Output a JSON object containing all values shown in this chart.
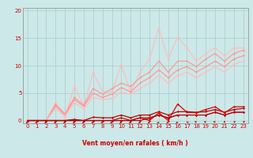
{
  "title": "",
  "xlabel": "Vent moyen/en rafales ( km/h )",
  "ylabel": "",
  "xlim": [
    -0.5,
    23.5
  ],
  "ylim": [
    -0.5,
    20.5
  ],
  "yticks": [
    0,
    5,
    10,
    15,
    20
  ],
  "xticks": [
    0,
    1,
    2,
    3,
    4,
    5,
    6,
    7,
    8,
    9,
    10,
    11,
    12,
    13,
    14,
    15,
    16,
    17,
    18,
    19,
    20,
    21,
    22,
    23
  ],
  "bg_color": "#cce8e8",
  "grid_color": "#aacccc",
  "x": [
    0,
    1,
    2,
    3,
    4,
    5,
    6,
    7,
    8,
    9,
    10,
    11,
    12,
    13,
    14,
    15,
    16,
    17,
    18,
    19,
    20,
    21,
    22,
    23
  ],
  "gust1_y": [
    0.0,
    0.0,
    0.0,
    3.2,
    0.6,
    6.2,
    2.6,
    8.8,
    5.2,
    5.2,
    10.2,
    5.2,
    8.8,
    11.2,
    16.8,
    11.2,
    15.2,
    13.2,
    10.8,
    12.2,
    13.2,
    11.8,
    13.2,
    13.2
  ],
  "gust2_y": [
    0.0,
    0.0,
    0.0,
    3.0,
    1.2,
    4.2,
    2.8,
    5.8,
    4.8,
    5.8,
    6.8,
    6.2,
    7.8,
    8.8,
    10.8,
    8.8,
    10.8,
    10.8,
    9.8,
    11.2,
    12.2,
    10.8,
    12.2,
    12.8
  ],
  "gust3_y": [
    0.0,
    0.0,
    0.0,
    2.6,
    1.0,
    3.8,
    2.6,
    5.0,
    4.2,
    4.8,
    6.0,
    5.2,
    6.8,
    7.8,
    9.2,
    7.8,
    9.2,
    9.8,
    8.8,
    9.8,
    10.8,
    9.8,
    11.2,
    11.8
  ],
  "gust4_y": [
    0.0,
    0.0,
    0.0,
    2.2,
    0.8,
    3.2,
    2.2,
    4.2,
    3.8,
    4.0,
    5.2,
    4.8,
    5.8,
    6.8,
    8.2,
    6.8,
    8.2,
    8.8,
    7.8,
    8.8,
    9.8,
    8.8,
    10.2,
    10.8
  ],
  "mean1_y": [
    0.0,
    0.0,
    0.0,
    0.0,
    0.0,
    0.2,
    0.0,
    0.6,
    0.5,
    0.5,
    1.0,
    0.5,
    1.0,
    1.0,
    1.6,
    1.0,
    1.6,
    1.6,
    1.5,
    1.6,
    2.0,
    1.5,
    2.0,
    2.2
  ],
  "mean2_y": [
    0.0,
    0.0,
    0.0,
    0.0,
    0.0,
    0.0,
    0.0,
    0.0,
    0.0,
    0.0,
    0.0,
    0.0,
    0.5,
    0.0,
    1.4,
    0.0,
    3.0,
    1.5,
    1.4,
    2.0,
    2.5,
    1.4,
    2.5,
    2.5
  ],
  "mean3_y": [
    0.0,
    0.0,
    0.0,
    0.0,
    0.0,
    0.0,
    0.0,
    0.0,
    0.0,
    0.0,
    0.0,
    0.0,
    0.0,
    0.4,
    1.0,
    0.4,
    1.0,
    1.0,
    1.0,
    1.0,
    1.5,
    1.0,
    1.5,
    1.5
  ],
  "mean4_y": [
    0.0,
    0.0,
    0.0,
    0.0,
    0.0,
    0.0,
    0.0,
    0.0,
    0.0,
    0.0,
    0.5,
    0.0,
    0.5,
    0.5,
    1.0,
    0.5,
    1.0,
    1.0,
    1.0,
    1.0,
    1.5,
    1.0,
    1.5,
    1.5
  ],
  "light_pink": "#ffbbbb",
  "pink": "#ff9999",
  "dark_red": "#bb0000",
  "red": "#dd0000",
  "axis_color": "#888888",
  "label_color": "#cc0000"
}
